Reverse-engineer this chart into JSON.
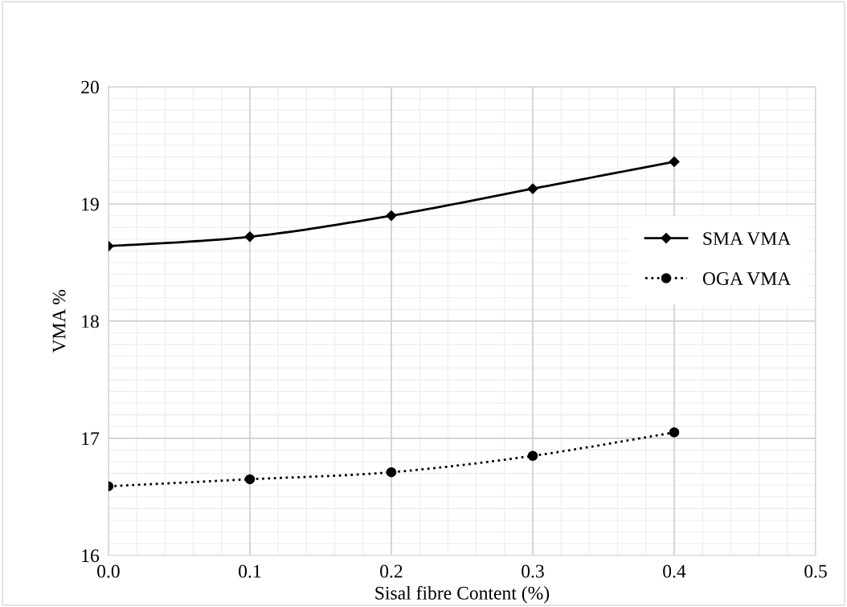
{
  "chart_data": {
    "type": "line",
    "xlabel": "Sisal fibre Content (%)",
    "ylabel": "VMA %",
    "x": [
      0.0,
      0.1,
      0.2,
      0.3,
      0.4
    ],
    "series": [
      {
        "name": "SMA VMA",
        "color": "#000000",
        "values": [
          18.64,
          18.72,
          18.9,
          19.13,
          19.36
        ],
        "marker": "diamond",
        "line_style": "solid"
      },
      {
        "name": "OGA VMA",
        "color": "#000000",
        "values": [
          16.59,
          16.65,
          16.71,
          16.85,
          17.05
        ],
        "marker": "circle",
        "line_style": "dotted"
      }
    ],
    "xlim": [
      0.0,
      0.5
    ],
    "xticks": [
      {
        "value": 0,
        "label": "0.0"
      },
      0.1,
      0.2,
      0.3,
      0.4,
      0.5
    ],
    "ylim": [
      16,
      20
    ],
    "yticks": [
      16,
      17,
      18,
      19,
      20
    ],
    "grid": true,
    "legend": "right"
  }
}
